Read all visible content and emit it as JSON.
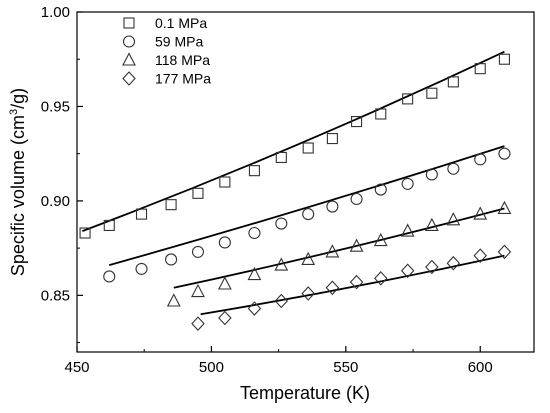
{
  "chart_data": {
    "type": "scatter",
    "xlabel": "Temperature (K)",
    "ylabel_main": "Specific volume (cm",
    "ylabel_sup": "3",
    "ylabel_tail": "/g)",
    "xlim": [
      450,
      620
    ],
    "ylim": [
      0.82,
      1.0
    ],
    "xticks": [
      450,
      500,
      550,
      600
    ],
    "xtick_labels": [
      "450",
      "500",
      "550",
      "600"
    ],
    "yticks": [
      0.85,
      0.9,
      0.95,
      1.0
    ],
    "ytick_labels": [
      "0.85",
      "0.90",
      "0.95",
      "1.00"
    ],
    "grid": false,
    "legend_position": "top-left",
    "series": [
      {
        "name": "0.1 MPa",
        "marker": "square",
        "x": [
          453,
          462,
          474,
          485,
          495,
          505,
          516,
          526,
          536,
          545,
          554,
          563,
          573,
          582,
          590,
          600,
          609
        ],
        "y": [
          0.883,
          0.887,
          0.893,
          0.898,
          0.904,
          0.91,
          0.916,
          0.923,
          0.928,
          0.933,
          0.942,
          0.946,
          0.954,
          0.957,
          0.963,
          0.97,
          0.975
        ],
        "fit_x": [
          452,
          609
        ],
        "fit_y": [
          0.884,
          0.979
        ]
      },
      {
        "name": "59 MPa",
        "marker": "circle",
        "x": [
          462,
          474,
          485,
          495,
          505,
          516,
          526,
          536,
          545,
          554,
          563,
          573,
          582,
          590,
          600,
          609
        ],
        "y": [
          0.86,
          0.864,
          0.869,
          0.873,
          0.878,
          0.883,
          0.888,
          0.893,
          0.897,
          0.901,
          0.906,
          0.909,
          0.914,
          0.917,
          0.922,
          0.925
        ],
        "fit_x": [
          462,
          609
        ],
        "fit_y": [
          0.866,
          0.929
        ]
      },
      {
        "name": "118 MPa",
        "marker": "triangle",
        "x": [
          486,
          495,
          505,
          516,
          526,
          536,
          545,
          554,
          563,
          573,
          582,
          590,
          600,
          609
        ],
        "y": [
          0.847,
          0.852,
          0.856,
          0.861,
          0.866,
          0.869,
          0.873,
          0.876,
          0.879,
          0.884,
          0.887,
          0.89,
          0.893,
          0.896
        ],
        "fit_x": [
          486,
          609
        ],
        "fit_y": [
          0.854,
          0.896
        ]
      },
      {
        "name": "177 MPa",
        "marker": "diamond",
        "x": [
          495,
          505,
          516,
          526,
          536,
          545,
          554,
          563,
          573,
          582,
          590,
          600,
          609
        ],
        "y": [
          0.835,
          0.838,
          0.843,
          0.847,
          0.851,
          0.854,
          0.857,
          0.859,
          0.863,
          0.865,
          0.867,
          0.871,
          0.873
        ],
        "fit_x": [
          496,
          609
        ],
        "fit_y": [
          0.84,
          0.871
        ]
      }
    ]
  }
}
